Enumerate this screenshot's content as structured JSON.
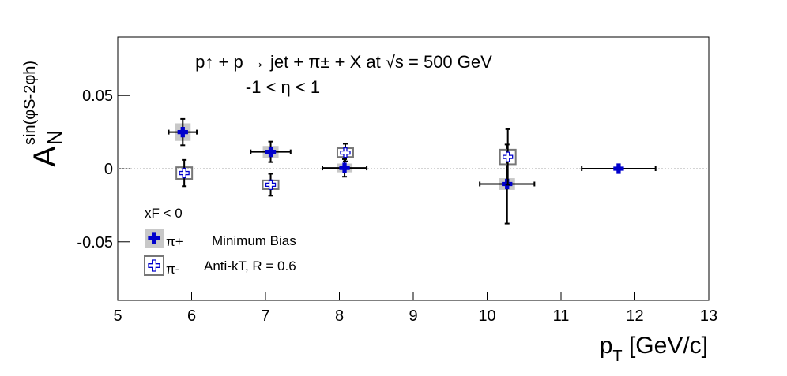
{
  "chart_data": {
    "type": "scatter",
    "title": "p↑ + p → jet + π± + X at √s = 500 GeV",
    "subtitle": "-1 < η < 1",
    "xlabel": {
      "main": "p",
      "sub": "T",
      "rest": " [GeV/c]"
    },
    "ylabel": {
      "main": "A",
      "sub": "N",
      "sup": "sin(φS-2φh)"
    },
    "legend_title": "xF < 0",
    "annotations": [
      "Minimum Bias",
      "Anti-kT, R = 0.6"
    ],
    "xlim": [
      5,
      13
    ],
    "xticks": [
      5,
      6,
      7,
      8,
      9,
      10,
      11,
      12,
      13
    ],
    "ylim": [
      -0.09,
      0.09
    ],
    "yticks": [
      -0.05,
      0,
      0.05
    ],
    "series": [
      {
        "name": "π+",
        "color": "#0000cc",
        "marker": "filled-cross",
        "x": [
          5.88,
          7.07,
          8.07,
          10.27,
          11.78
        ],
        "values": [
          0.025,
          0.0115,
          0.0005,
          -0.0105,
          0
        ],
        "yerr": [
          0.009,
          0.007,
          0.006,
          0.027,
          0
        ],
        "xerr": [
          0.19,
          0.27,
          0.3,
          0.37,
          0.5
        ],
        "syst": [
          0.006,
          0.004,
          0.003,
          0.004,
          0
        ]
      },
      {
        "name": "π-",
        "color": "#0000cc",
        "marker": "open-cross",
        "x": [
          5.9,
          7.07,
          8.08,
          10.28
        ],
        "values": [
          -0.003,
          -0.011,
          0.011,
          0.008
        ],
        "yerr": [
          0.009,
          0.0075,
          0.006,
          0.019
        ],
        "syst": [
          0.004,
          0.003,
          0.003,
          0.005
        ]
      }
    ]
  }
}
